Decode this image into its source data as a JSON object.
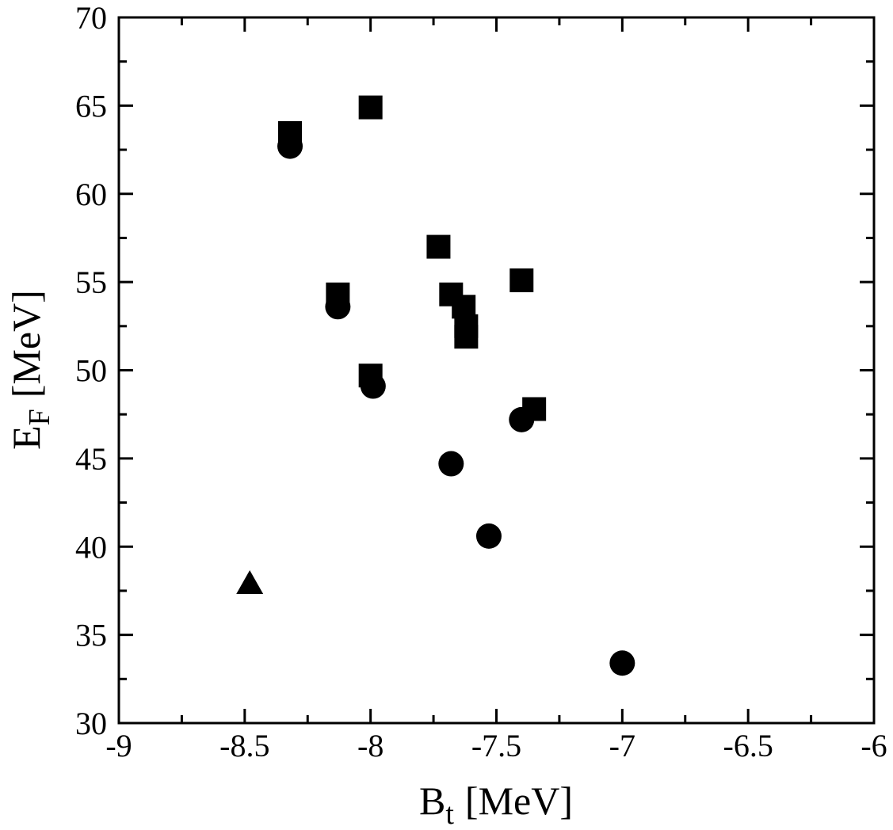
{
  "chart_data": {
    "type": "scatter",
    "xlabel": [
      "B",
      "t",
      "[MeV]"
    ],
    "ylabel": [
      "E",
      "F",
      "[MeV]"
    ],
    "xlim": [
      -9,
      -6
    ],
    "ylim": [
      30,
      70
    ],
    "xticks": [
      -9,
      -8.5,
      -8,
      -7.5,
      -7,
      -6.5,
      -6
    ],
    "yticks": [
      30,
      35,
      40,
      45,
      50,
      55,
      60,
      65,
      70
    ],
    "xminorticks": [
      -8.75,
      -8.25,
      -7.75,
      -7.25,
      -6.75,
      -6.25
    ],
    "yminorticks": [
      32.5,
      37.5,
      42.5,
      47.5,
      52.5,
      57.5,
      62.5,
      67.5
    ],
    "series": [
      {
        "marker": "square",
        "color": "#000000",
        "x": [
          -8.32,
          -8.0,
          -7.73,
          -8.13,
          -7.68,
          -7.63,
          -7.62,
          -7.62,
          -7.4,
          -7.35,
          -8.0
        ],
        "values": [
          63.45,
          64.9,
          57.0,
          54.3,
          54.3,
          53.6,
          52.5,
          51.9,
          55.1,
          47.8,
          49.7
        ]
      },
      {
        "marker": "circle",
        "color": "#000000",
        "x": [
          -8.32,
          -8.13,
          -7.99,
          -7.68,
          -7.4,
          -7.53,
          -7.0
        ],
        "values": [
          62.7,
          53.6,
          49.1,
          44.7,
          47.2,
          40.6,
          33.4
        ]
      },
      {
        "marker": "triangle",
        "color": "#000000",
        "x": [
          -8.48
        ],
        "values": [
          37.9
        ]
      }
    ]
  }
}
